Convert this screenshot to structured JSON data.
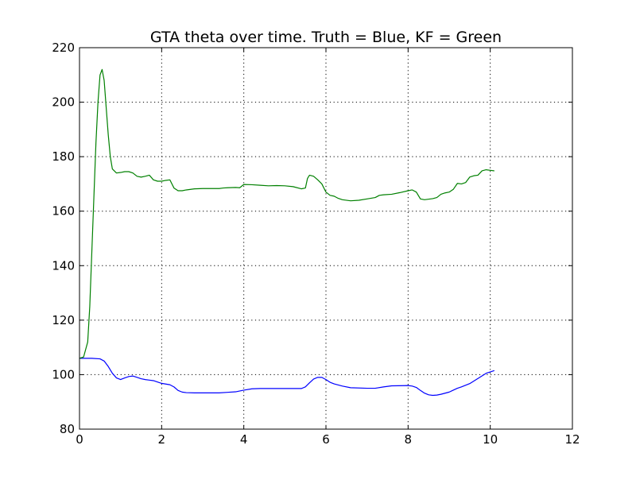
{
  "chart_data": {
    "type": "line",
    "title": "GTA theta over time. Truth = Blue, KF = Green",
    "xlabel": "",
    "ylabel": "",
    "xlim": [
      0,
      12
    ],
    "ylim": [
      80,
      220
    ],
    "xticks": [
      0,
      2,
      4,
      6,
      8,
      10,
      12
    ],
    "yticks": [
      80,
      100,
      120,
      140,
      160,
      180,
      200,
      220
    ],
    "grid": true,
    "legend": "none",
    "series": [
      {
        "color": "#0000ff",
        "x": [
          0,
          0.3,
          0.5,
          0.6,
          0.7,
          0.8,
          0.9,
          1.0,
          1.1,
          1.2,
          1.3,
          1.4,
          1.5,
          1.6,
          1.7,
          1.8,
          1.9,
          2.0,
          2.2,
          2.3,
          2.4,
          2.5,
          2.6,
          2.8,
          3.0,
          3.4,
          3.6,
          3.8,
          4.0,
          4.2,
          4.4,
          4.6,
          5.0,
          5.4,
          5.5,
          5.6,
          5.7,
          5.8,
          5.9,
          6.0,
          6.1,
          6.2,
          6.4,
          6.6,
          7.0,
          7.2,
          7.4,
          7.6,
          8.0,
          8.1,
          8.2,
          8.3,
          8.4,
          8.5,
          8.6,
          8.7,
          8.8,
          9.0,
          9.1,
          9.2,
          9.3,
          9.5,
          9.7,
          9.9,
          10.1
        ],
        "y": [
          106,
          106,
          105.8,
          105,
          103,
          100.5,
          98.8,
          98.2,
          98.8,
          99.3,
          99.5,
          99,
          98.5,
          98.2,
          98,
          97.8,
          97.3,
          96.8,
          96.3,
          95.5,
          94.2,
          93.6,
          93.4,
          93.3,
          93.3,
          93.3,
          93.5,
          93.7,
          94.3,
          94.8,
          94.9,
          94.9,
          94.9,
          94.9,
          95.5,
          97,
          98.4,
          99,
          99,
          98.2,
          97.2,
          96.6,
          95.8,
          95.2,
          95,
          95,
          95.5,
          95.9,
          96,
          95.8,
          95.3,
          94.2,
          93.2,
          92.6,
          92.4,
          92.5,
          92.8,
          93.6,
          94.3,
          95,
          95.5,
          96.7,
          98.6,
          100.5,
          101.5
        ]
      },
      {
        "color": "#008000",
        "x": [
          0,
          0.1,
          0.2,
          0.25,
          0.3,
          0.35,
          0.4,
          0.45,
          0.5,
          0.55,
          0.6,
          0.65,
          0.7,
          0.75,
          0.8,
          0.9,
          1.0,
          1.1,
          1.2,
          1.3,
          1.4,
          1.5,
          1.6,
          1.7,
          1.8,
          1.9,
          2.0,
          2.1,
          2.2,
          2.3,
          2.4,
          2.5,
          2.6,
          2.8,
          3.0,
          3.2,
          3.4,
          3.5,
          3.6,
          3.8,
          3.9,
          4.0,
          4.2,
          4.4,
          4.6,
          4.8,
          5.0,
          5.2,
          5.4,
          5.5,
          5.55,
          5.6,
          5.7,
          5.8,
          5.9,
          6.0,
          6.1,
          6.2,
          6.3,
          6.4,
          6.6,
          6.8,
          7.0,
          7.2,
          7.3,
          7.4,
          7.6,
          7.8,
          8.0,
          8.1,
          8.2,
          8.3,
          8.4,
          8.6,
          8.7,
          8.8,
          8.9,
          9.0,
          9.1,
          9.2,
          9.3,
          9.4,
          9.5,
          9.6,
          9.7,
          9.8,
          9.9,
          10.0,
          10.1
        ],
        "y": [
          106,
          106.5,
          112,
          125,
          145,
          165,
          185,
          200,
          210,
          212,
          208,
          198,
          188,
          180,
          175.5,
          174,
          174.2,
          174.5,
          174.5,
          174,
          172.8,
          172.5,
          172.8,
          173.2,
          171.5,
          171,
          171,
          171.3,
          171.5,
          168.5,
          167.5,
          167.5,
          167.8,
          168.2,
          168.3,
          168.3,
          168.3,
          168.5,
          168.6,
          168.7,
          168.6,
          169.8,
          169.7,
          169.5,
          169.3,
          169.4,
          169.3,
          169,
          168.2,
          168.5,
          172,
          173.2,
          172.8,
          171.5,
          170,
          167,
          165.8,
          165.5,
          164.7,
          164.2,
          163.8,
          164,
          164.5,
          165,
          165.8,
          166,
          166.2,
          166.8,
          167.5,
          167.8,
          167,
          164.5,
          164.2,
          164.6,
          165,
          166.2,
          166.7,
          167,
          168,
          170.2,
          170,
          170.5,
          172.5,
          173,
          173.2,
          174.8,
          175.2,
          175,
          174.8
        ]
      }
    ]
  }
}
